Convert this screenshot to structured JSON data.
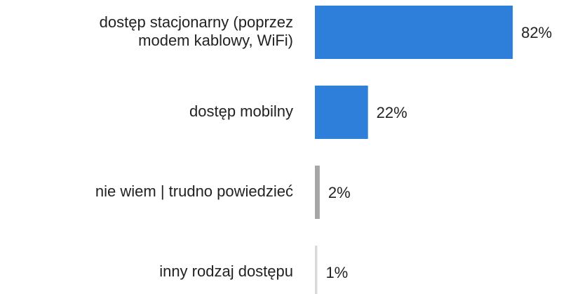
{
  "chart_data": {
    "type": "bar",
    "orientation": "horizontal",
    "categories": [
      "dostęp stacjonarny (poprzez\nmodem kablowy, WiFi)",
      "dostęp mobilny",
      "nie wiem | trudno powiedzieć",
      "inny rodzaj dostępu"
    ],
    "values": [
      82,
      22,
      2,
      1
    ],
    "value_labels": [
      "82%",
      "22%",
      "2%",
      "1%"
    ],
    "colors": [
      "#2e7fd9",
      "#2e7fd9",
      "#a6a6a6",
      "#d9d9d9"
    ]
  }
}
